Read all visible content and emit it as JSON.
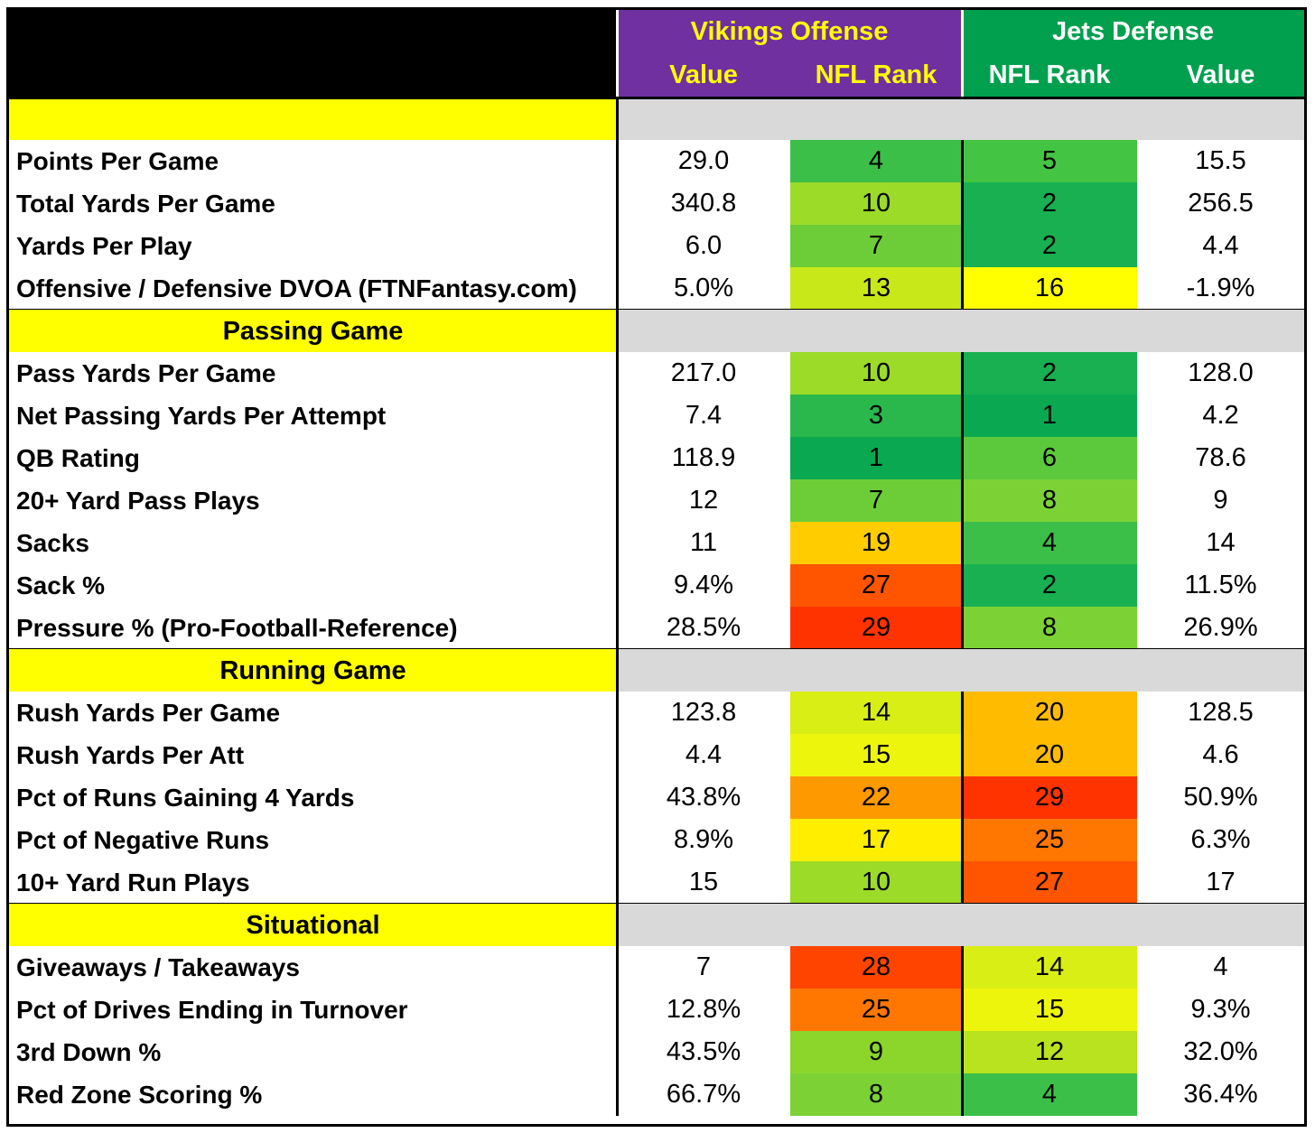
{
  "header": {
    "vikings_title": "Vikings Offense",
    "jets_title": "Jets Defense",
    "col_value_off": "Value",
    "col_rank_off": "NFL Rank",
    "col_rank_def": "NFL Rank",
    "col_value_def": "Value"
  },
  "colors": {
    "purple": "#7030a0",
    "green_header": "#00a04e",
    "section_yellow": "#ffff00",
    "section_gray": "#d9d9d9"
  },
  "sections": [
    {
      "title": "",
      "rows": [
        {
          "label": "Points Per Game",
          "off_value": "29.0",
          "off_rank": "4",
          "def_rank": "5",
          "def_value": "15.5",
          "off_color": "#3cbf48",
          "def_color": "#44c443"
        },
        {
          "label": "Total Yards Per Game",
          "off_value": "340.8",
          "off_rank": "10",
          "def_rank": "2",
          "def_value": "256.5",
          "off_color": "#9cdb28",
          "def_color": "#18b050"
        },
        {
          "label": "Yards Per Play",
          "off_value": "6.0",
          "off_rank": "7",
          "def_rank": "2",
          "def_value": "4.4",
          "off_color": "#6dcd38",
          "def_color": "#18b050"
        },
        {
          "label": "Offensive / Defensive DVOA (FTNFantasy.com)",
          "off_value": "5.0%",
          "off_rank": "13",
          "def_rank": "16",
          "def_value": "-1.9%",
          "off_color": "#c8e81a",
          "def_color": "#ffff00"
        }
      ]
    },
    {
      "title": "Passing Game",
      "rows": [
        {
          "label": "Pass Yards Per Game",
          "off_value": "217.0",
          "off_rank": "10",
          "def_rank": "2",
          "def_value": "128.0",
          "off_color": "#9cdb28",
          "def_color": "#18b050"
        },
        {
          "label": "Net Passing Yards Per Attempt",
          "off_value": "7.4",
          "off_rank": "3",
          "def_rank": "1",
          "def_value": "4.2",
          "off_color": "#2ab84c",
          "def_color": "#0aa951"
        },
        {
          "label": "QB Rating",
          "off_value": "118.9",
          "off_rank": "1",
          "def_rank": "6",
          "def_value": "78.6",
          "off_color": "#0aa951",
          "def_color": "#5cc93c"
        },
        {
          "label": "20+ Yard Pass Plays",
          "off_value": "12",
          "off_rank": "7",
          "def_rank": "8",
          "def_value": "9",
          "off_color": "#6dcd38",
          "def_color": "#7cd234"
        },
        {
          "label": "Sacks",
          "off_value": "11",
          "off_rank": "19",
          "def_rank": "4",
          "def_value": "14",
          "off_color": "#ffcc00",
          "def_color": "#3cbf48"
        },
        {
          "label": "Sack %",
          "off_value": "9.4%",
          "off_rank": "27",
          "def_rank": "2",
          "def_value": "11.5%",
          "off_color": "#ff5500",
          "def_color": "#18b050"
        },
        {
          "label": "Pressure % (Pro-Football-Reference)",
          "off_value": "28.5%",
          "off_rank": "29",
          "def_rank": "8",
          "def_value": "26.9%",
          "off_color": "#ff3300",
          "def_color": "#7cd234"
        }
      ]
    },
    {
      "title": "Running Game",
      "rows": [
        {
          "label": "Rush Yards Per Game",
          "off_value": "123.8",
          "off_rank": "14",
          "def_rank": "20",
          "def_value": "128.5",
          "off_color": "#d9ee14",
          "def_color": "#ffbb00"
        },
        {
          "label": "Rush Yards Per Att",
          "off_value": "4.4",
          "off_rank": "15",
          "def_rank": "20",
          "def_value": "4.6",
          "off_color": "#eef50c",
          "def_color": "#ffbb00"
        },
        {
          "label": "Pct of Runs Gaining 4 Yards",
          "off_value": "43.8%",
          "off_rank": "22",
          "def_rank": "29",
          "def_value": "50.9%",
          "off_color": "#ff9900",
          "def_color": "#ff3300"
        },
        {
          "label": "Pct of Negative Runs",
          "off_value": "8.9%",
          "off_rank": "17",
          "def_rank": "25",
          "def_value": "6.3%",
          "off_color": "#ffee00",
          "def_color": "#ff7700"
        },
        {
          "label": "10+ Yard Run Plays",
          "off_value": "15",
          "off_rank": "10",
          "def_rank": "27",
          "def_value": "17",
          "off_color": "#9cdb28",
          "def_color": "#ff5500"
        }
      ]
    },
    {
      "title": "Situational",
      "rows": [
        {
          "label": "Giveaways / Takeaways",
          "off_value": "7",
          "off_rank": "28",
          "def_rank": "14",
          "def_value": "4",
          "off_color": "#ff4400",
          "def_color": "#d9ee14"
        },
        {
          "label": "Pct of Drives Ending in Turnover",
          "off_value": "12.8%",
          "off_rank": "25",
          "def_rank": "15",
          "def_value": "9.3%",
          "off_color": "#ff7700",
          "def_color": "#eef50c"
        },
        {
          "label": "3rd Down %",
          "off_value": "43.5%",
          "off_rank": "9",
          "def_rank": "12",
          "def_value": "32.0%",
          "off_color": "#8cd62c",
          "def_color": "#b8e31e"
        },
        {
          "label": "Red Zone Scoring %",
          "off_value": "66.7%",
          "off_rank": "8",
          "def_rank": "4",
          "def_value": "36.4%",
          "off_color": "#7cd234",
          "def_color": "#3cbf48"
        }
      ]
    }
  ]
}
